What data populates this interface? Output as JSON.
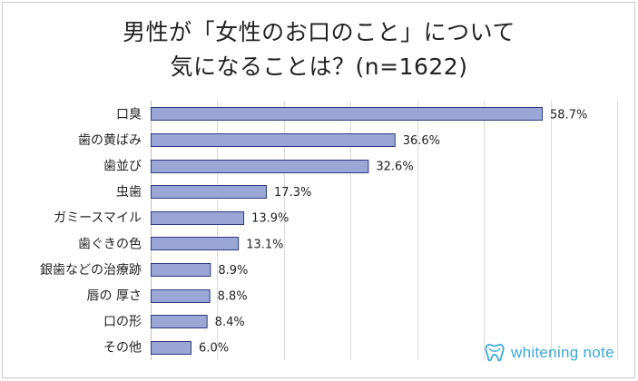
{
  "chart_data": {
    "type": "bar",
    "orientation": "horizontal",
    "title_lines": [
      "男性が「女性のお口のこと」について",
      "気になることは？(n=1622)"
    ],
    "categories": [
      "口臭",
      "歯の黄ばみ",
      "歯並び",
      "虫歯",
      "ガミースマイル",
      "歯ぐきの色",
      "銀歯などの治療跡",
      "唇の 厚さ",
      "口の形",
      "その他"
    ],
    "values": [
      58.7,
      36.6,
      32.6,
      17.3,
      13.9,
      13.1,
      8.9,
      8.8,
      8.4,
      6.0
    ],
    "value_labels": [
      "58.7%",
      "36.6%",
      "32.6%",
      "17.3%",
      "13.9%",
      "13.1%",
      "8.9%",
      "8.8%",
      "8.4%",
      "6.0%"
    ],
    "xlim": [
      0,
      70
    ],
    "grid": "vertical",
    "bar_color": "#9aa6d6",
    "bar_border_color": "#2f3b80"
  },
  "logo": {
    "text": "whitening note",
    "icon": "tooth-icon",
    "color": "#3aa9d8"
  }
}
